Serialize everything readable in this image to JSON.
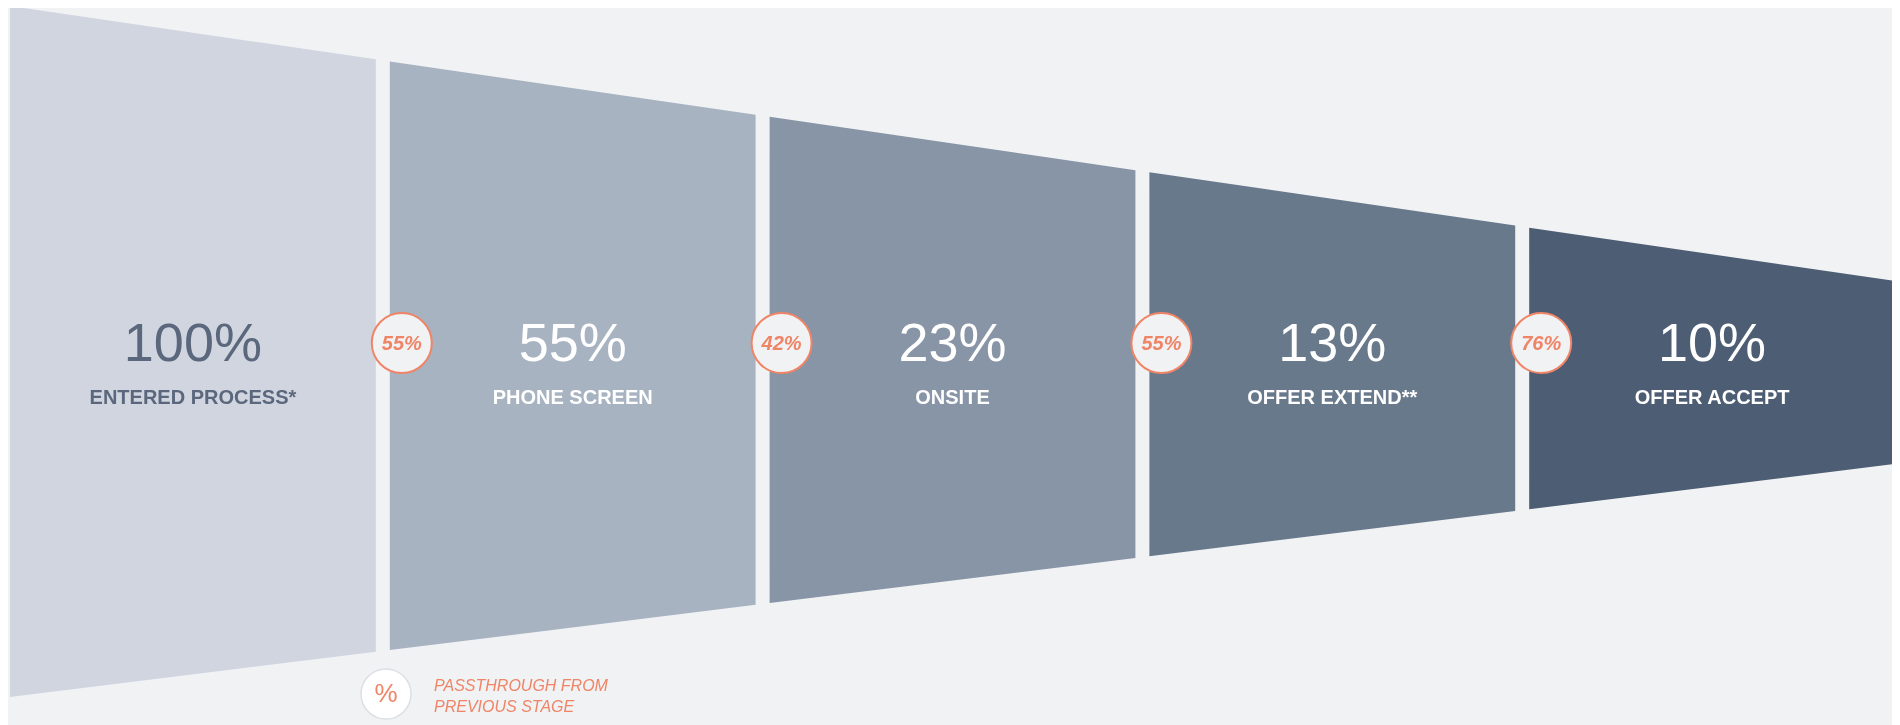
{
  "chart_data": {
    "type": "other",
    "categories": [
      "ENTERED PROCESS*",
      "PHONE SCREEN",
      "ONSITE",
      "OFFER EXTEND**",
      "OFFER ACCEPT"
    ],
    "series": [
      {
        "values": [
          100,
          55,
          23,
          13,
          10
        ],
        "value_labels": [
          "100%",
          "55%",
          "23%",
          "13%",
          "10%"
        ],
        "colors": [
          "#d0d5df",
          "#a8b3c1",
          "#8895a6",
          "#68798c",
          "#4d5d74"
        ]
      },
      {
        "name": "PASSTHROUGH FROM PREVIOUS STAGE",
        "color": "#ef8466",
        "values": [
          null,
          55,
          42,
          55,
          76
        ],
        "value_labels": [
          null,
          "55%",
          "42%",
          "55%",
          "76%"
        ]
      }
    ],
    "annotations": [
      "%"
    ],
    "legend": "bottom left"
  }
}
